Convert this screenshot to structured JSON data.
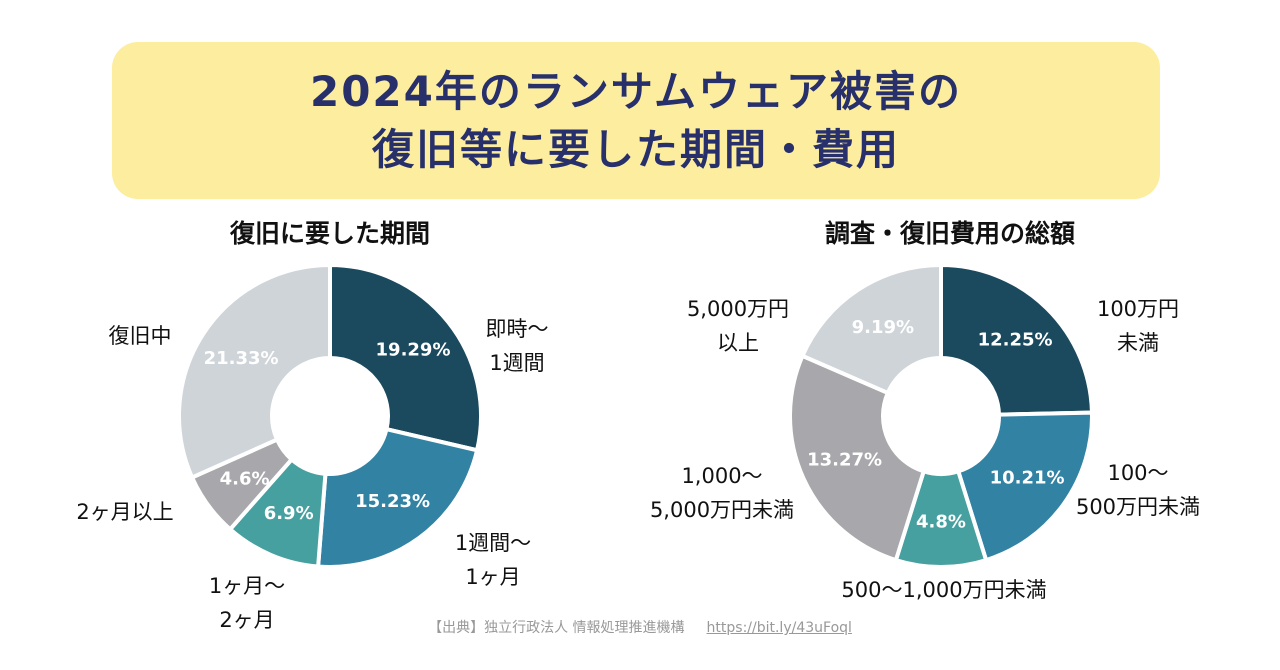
{
  "banner": {
    "line1": "2024年のランサムウェア被害の",
    "line2": "復旧等に要した期間・費用"
  },
  "colors": {
    "banner_bg": "#fcee9e",
    "banner_text": "#27306b",
    "navy": "#1b4a5f",
    "blue": "#3282a4",
    "teal": "#47a0a0",
    "gray": "#a8a8ac",
    "light_gray": "#cfd4d9"
  },
  "chart_data": [
    {
      "type": "pie",
      "donut": true,
      "title": "復旧に要した期間",
      "slices": [
        {
          "label": "即時〜1週間",
          "value": 19.29,
          "value_label": "19.29%",
          "color": "#1b4a5f"
        },
        {
          "label": "1週間〜1ヶ月",
          "value": 15.23,
          "value_label": "15.23%",
          "color": "#3282a4"
        },
        {
          "label": "1ヶ月〜2ヶ月",
          "value": 6.9,
          "value_label": "6.9%",
          "color": "#47a0a0"
        },
        {
          "label": "2ヶ月以上",
          "value": 4.6,
          "value_label": "4.6%",
          "color": "#a8a8ac"
        },
        {
          "label": "復旧中",
          "value": 21.33,
          "value_label": "21.33%",
          "color": "#cfd4d9"
        }
      ],
      "outer_labels": [
        {
          "lines": [
            "即時〜",
            "1週間"
          ]
        },
        {
          "lines": [
            "1週間〜",
            "1ヶ月"
          ]
        },
        {
          "lines": [
            "1ヶ月〜",
            "2ヶ月"
          ]
        },
        {
          "lines": [
            "2ヶ月以上"
          ]
        },
        {
          "lines": [
            "復旧中"
          ]
        }
      ]
    },
    {
      "type": "pie",
      "donut": true,
      "title": "調査・復旧費用の総額",
      "slices": [
        {
          "label": "100万円未満",
          "value": 12.25,
          "value_label": "12.25%",
          "color": "#1b4a5f"
        },
        {
          "label": "100〜500万円未満",
          "value": 10.21,
          "value_label": "10.21%",
          "color": "#3282a4"
        },
        {
          "label": "500〜1,000万円未満",
          "value": 4.8,
          "value_label": "4.8%",
          "color": "#47a0a0"
        },
        {
          "label": "1,000〜5,000万円未満",
          "value": 13.27,
          "value_label": "13.27%",
          "color": "#a8a8ac"
        },
        {
          "label": "5,000万円以上",
          "value": 9.19,
          "value_label": "9.19%",
          "color": "#cfd4d9"
        }
      ],
      "outer_labels": [
        {
          "lines": [
            "100万円",
            "未満"
          ]
        },
        {
          "lines": [
            "100〜",
            "500万円未満"
          ]
        },
        {
          "lines": [
            "500〜1,000万円未満"
          ]
        },
        {
          "lines": [
            "1,000〜",
            "5,000万円未満"
          ]
        },
        {
          "lines": [
            "5,000万円",
            "以上"
          ]
        }
      ]
    }
  ],
  "source": {
    "text": "【出典】独立行政法人 情報処理推進機構",
    "url": "https://bit.ly/43uFoql"
  }
}
